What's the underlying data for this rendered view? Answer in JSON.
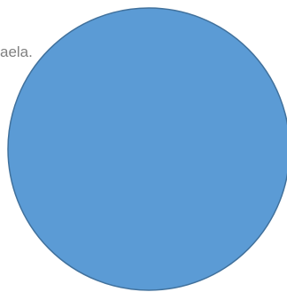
{
  "text_fragment": "aela.",
  "shape": {
    "type": "circle",
    "fill": "#5b9bd5",
    "stroke": "#41719c"
  }
}
